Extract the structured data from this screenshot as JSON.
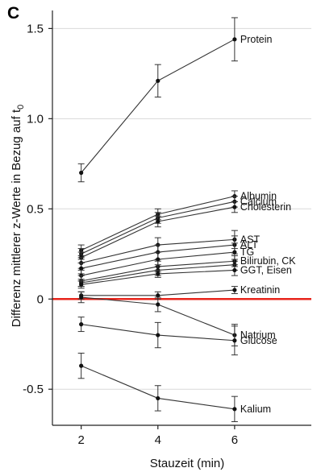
{
  "panel_label": "C",
  "chart_data": {
    "type": "line",
    "xlabel": "Stauzeit (min)",
    "ylabel": "Differenz mittlerer z-Werte in Bezug auf t",
    "ylabel_subscript": "0",
    "x": [
      2,
      4,
      6
    ],
    "xlim": [
      1.25,
      8
    ],
    "ylim": [
      -0.7,
      1.6
    ],
    "xticks": [
      "2",
      "4",
      "6"
    ],
    "yticks": [
      "1.5",
      "1.0",
      "0.5",
      "0",
      "-0.5"
    ],
    "ytick_values": [
      1.5,
      1.0,
      0.5,
      0,
      -0.5
    ],
    "grid": "horizontal",
    "zero_line_color": "#e8251c",
    "series": [
      {
        "name": "Protein",
        "values": [
          0.7,
          1.21,
          1.44
        ],
        "errors": [
          0.05,
          0.09,
          0.12
        ]
      },
      {
        "name": "Albumin",
        "values": [
          0.27,
          0.47,
          0.57
        ],
        "errors": [
          0.03,
          0.03,
          0.03
        ]
      },
      {
        "name": "Calcium",
        "values": [
          0.25,
          0.45,
          0.54
        ],
        "errors": [
          0.03,
          0.03,
          0.03
        ]
      },
      {
        "name": "Cholesterin",
        "values": [
          0.23,
          0.43,
          0.51
        ],
        "errors": [
          0.03,
          0.03,
          0.03
        ]
      },
      {
        "name": "AST",
        "values": [
          0.2,
          0.3,
          0.33
        ],
        "errors": [
          0.03,
          0.04,
          0.05
        ]
      },
      {
        "name": "ALT",
        "values": [
          0.17,
          0.26,
          0.3
        ],
        "errors": [
          0.03,
          0.04,
          0.05
        ]
      },
      {
        "name": "TG",
        "values": [
          0.13,
          0.22,
          0.26
        ],
        "errors": [
          0.03,
          0.04,
          0.05
        ]
      },
      {
        "name": "Bilirubin, CK",
        "values": [
          0.1,
          0.18,
          0.21
        ],
        "errors": [
          0.03,
          0.03,
          0.03
        ]
      },
      {
        "name": "",
        "values": [
          0.09,
          0.16,
          0.19
        ],
        "errors": [
          0.02,
          0.03,
          0.03
        ]
      },
      {
        "name": "GGT, Eisen",
        "values": [
          0.08,
          0.14,
          0.16
        ],
        "errors": [
          0.02,
          0.02,
          0.03
        ]
      },
      {
        "name": "Kreatinin",
        "values": [
          0.02,
          0.02,
          0.05
        ],
        "errors": [
          0.02,
          0.02,
          0.02
        ]
      },
      {
        "name": "Natrium",
        "values": [
          0.01,
          -0.03,
          -0.2
        ],
        "errors": [
          0.03,
          0.04,
          0.06
        ]
      },
      {
        "name": "Glucose",
        "values": [
          -0.14,
          -0.2,
          -0.23
        ],
        "errors": [
          0.04,
          0.07,
          0.08
        ]
      },
      {
        "name": "Kalium",
        "values": [
          -0.37,
          -0.55,
          -0.61
        ],
        "errors": [
          0.07,
          0.07,
          0.07
        ]
      }
    ],
    "colors": {
      "line": "#333333",
      "grid": "#d9d9d9",
      "zero": "#e8251c"
    }
  }
}
